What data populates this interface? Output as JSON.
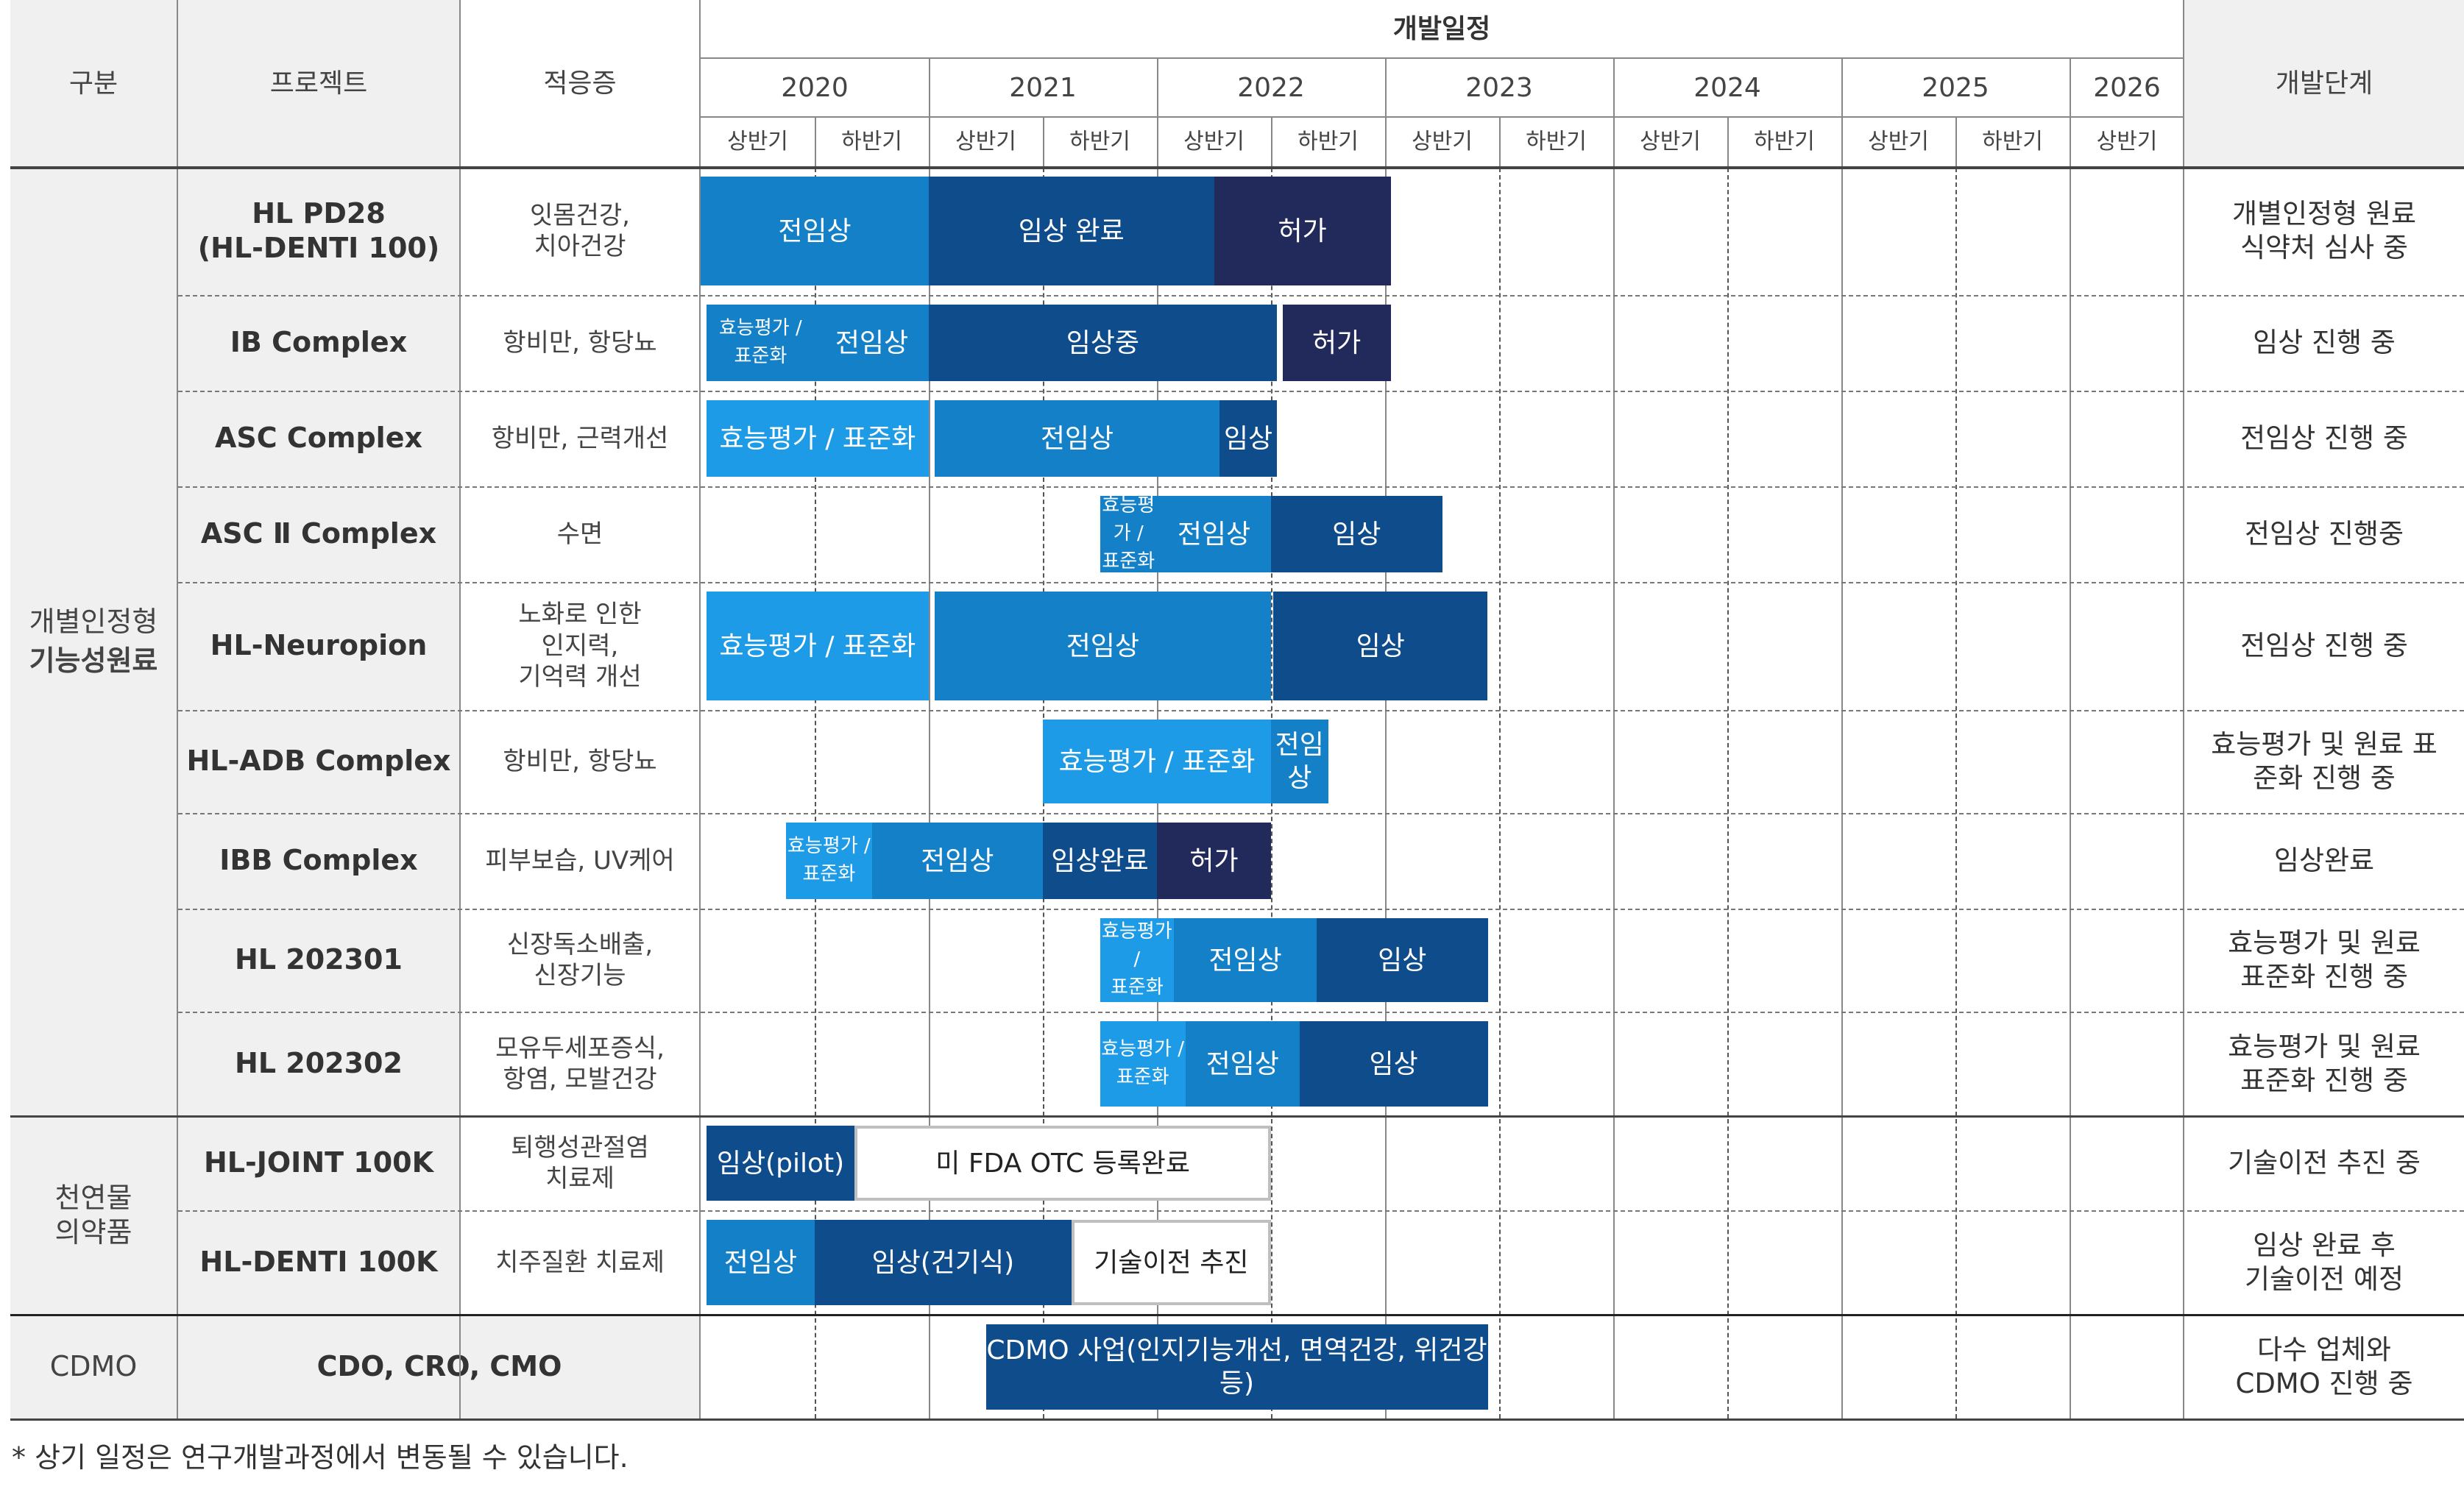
{
  "header": {
    "category": "구분",
    "project": "프로젝트",
    "indication": "적응증",
    "schedule": "개발일정",
    "stage": "개발단계",
    "years": [
      "2020",
      "2021",
      "2022",
      "2023",
      "2024",
      "2025",
      "2026"
    ],
    "halves": [
      "상반기",
      "하반기",
      "상반기",
      "하반기",
      "상반기",
      "하반기",
      "상반기",
      "하반기",
      "상반기",
      "하반기",
      "상반기",
      "하반기",
      "상반기"
    ]
  },
  "categories": {
    "functional_line1": "개별인정형",
    "functional_line2": "기능성원료",
    "natural": "천연물\n의약품",
    "cdmo": "CDMO"
  },
  "rows": [
    {
      "project": "HL PD28\n(HL-DENTI 100)",
      "indication": "잇몸건강,\n치아건강",
      "stage": "개별인정형 원료\n식약처 심사 중",
      "bars": [
        {
          "label": "전임상"
        },
        {
          "label": "임상 완료"
        },
        {
          "label": "허가"
        }
      ]
    },
    {
      "project": "IB Complex",
      "indication": "항비만, 항당뇨",
      "stage": "임상 진행 중",
      "bars": [
        {
          "label": "효능평가 /\n표준화"
        },
        {
          "label": "전임상"
        },
        {
          "label": "임상중"
        },
        {
          "label": "허가"
        }
      ]
    },
    {
      "project": "ASC Complex",
      "indication": "항비만, 근력개선",
      "stage": "전임상 진행 중",
      "bars": [
        {
          "label": "효능평가 / 표준화"
        },
        {
          "label": "전임상"
        },
        {
          "label": "임상"
        }
      ]
    },
    {
      "project": "ASC Ⅱ Complex",
      "indication": "수면",
      "stage": "전임상 진행중",
      "bars": [
        {
          "label": "효능평가 /\n표준화"
        },
        {
          "label": "전임상"
        },
        {
          "label": "임상"
        }
      ]
    },
    {
      "project": "HL-Neuropion",
      "indication": "노화로 인한\n인지력,\n기억력 개선",
      "stage": "전임상 진행 중",
      "bars": [
        {
          "label": "효능평가 / 표준화"
        },
        {
          "label": "전임상"
        },
        {
          "label": "임상"
        }
      ]
    },
    {
      "project": "HL-ADB Complex",
      "indication": "항비만, 항당뇨",
      "stage": "효능평가 및 원료 표\n준화 진행 중",
      "bars": [
        {
          "label": "효능평가 / 표준화"
        },
        {
          "label": "전임상"
        }
      ]
    },
    {
      "project": "IBB Complex",
      "indication": "피부보습, UV케어",
      "stage": "임상완료",
      "bars": [
        {
          "label": "효능평가 /\n표준화"
        },
        {
          "label": "전임상"
        },
        {
          "label": "임상완료"
        },
        {
          "label": "허가"
        }
      ]
    },
    {
      "project": "HL 202301",
      "indication": "신장독소배출,\n신장기능",
      "stage": "효능평가 및 원료\n표준화 진행 중",
      "bars": [
        {
          "label": "효능평가 /\n표준화"
        },
        {
          "label": "전임상"
        },
        {
          "label": "임상"
        }
      ]
    },
    {
      "project": "HL 202302",
      "indication": "모유두세포증식,\n항염, 모발건강",
      "stage": "효능평가 및 원료\n표준화 진행 중",
      "bars": [
        {
          "label": "효능평가 /\n표준화"
        },
        {
          "label": "전임상"
        },
        {
          "label": "임상"
        }
      ]
    },
    {
      "project": "HL-JOINT 100K",
      "indication": "퇴행성관절염\n치료제",
      "stage": "기술이전 추진 중",
      "bars": [
        {
          "label": "임상(pilot)"
        },
        {
          "label": "미 FDA OTC 등록완료"
        }
      ]
    },
    {
      "project": "HL-DENTI 100K",
      "indication": "치주질환 치료제",
      "stage": "임상 완료 후\n기술이전 예정",
      "bars": [
        {
          "label": "전임상"
        },
        {
          "label": "임상(건기식)"
        },
        {
          "label": "기술이전 추진"
        }
      ]
    },
    {
      "project": "CDO, CRO, CMO",
      "indication": "",
      "stage": "다수 업체와\nCDMO 진행 중",
      "bars": [
        {
          "label": "CDMO 사업(인지기능개선, 면역건강, 위건강 등)"
        }
      ]
    }
  ],
  "colors": {
    "light": "#1e9be6",
    "medium": "#1480c8",
    "dark": "#0e4c8c",
    "darker": "#0b3d7a",
    "navy": "#222a5c",
    "header_bg": "#f0f0f0"
  },
  "footnote": "* 상기 일정은 연구개발과정에서 변동될 수 있습니다."
}
